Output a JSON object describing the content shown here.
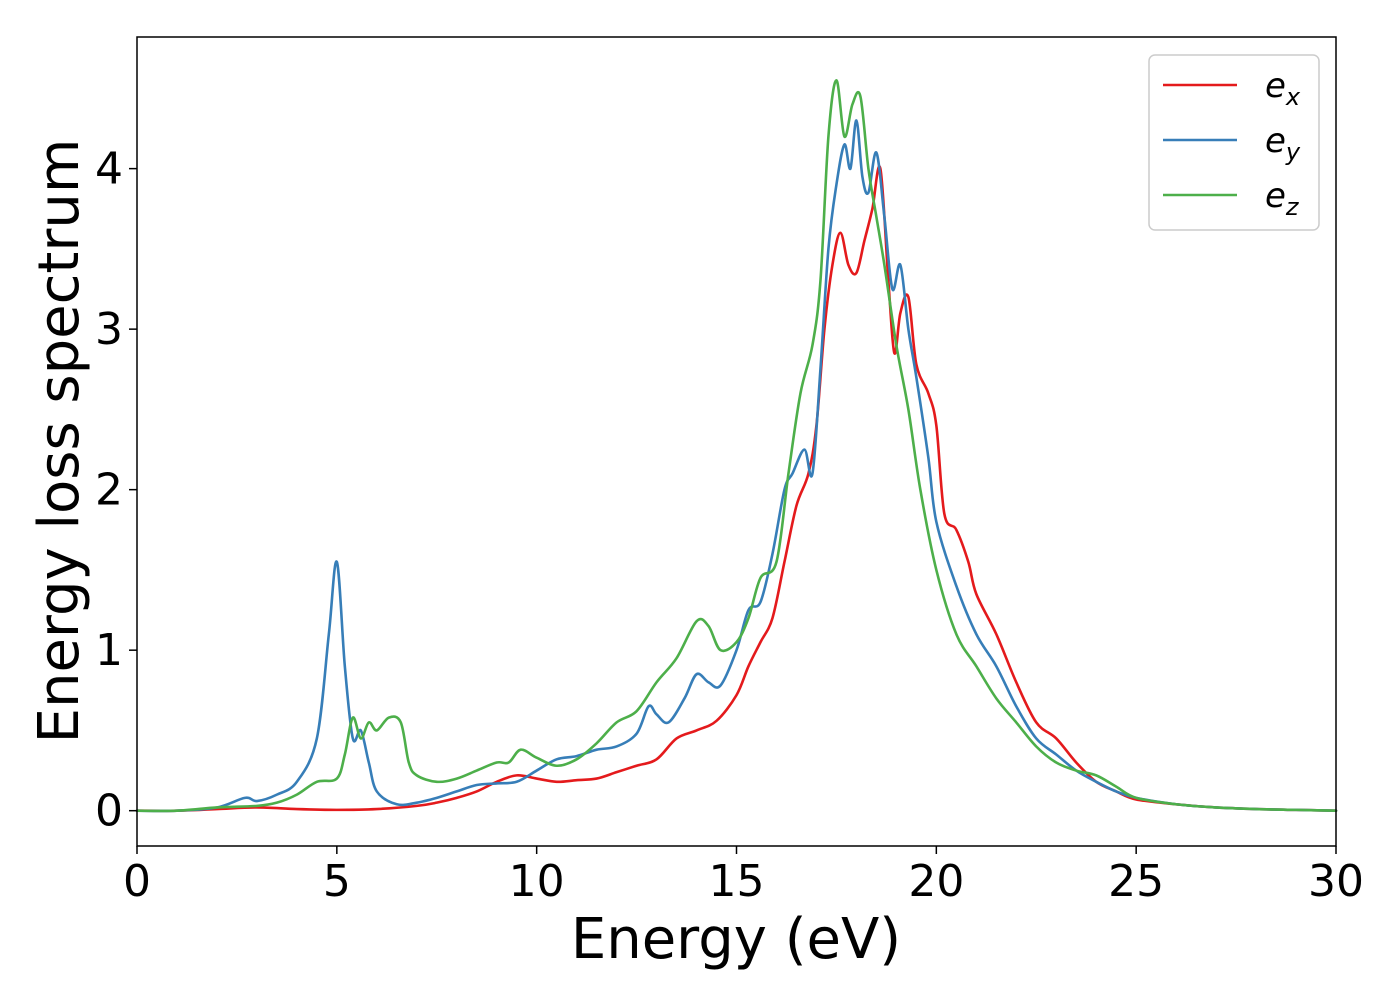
{
  "chart_data": {
    "type": "line",
    "xlabel": "Energy (eV)",
    "ylabel": "Energy loss spectrum",
    "xlim": [
      0,
      30
    ],
    "ylim": [
      -0.22,
      4.82
    ],
    "xticks": [
      0,
      5,
      10,
      15,
      20,
      25,
      30
    ],
    "yticks": [
      0,
      1,
      2,
      3,
      4
    ],
    "grid": false,
    "legend_position": "top-right",
    "series": [
      {
        "name": "e_x",
        "label_main": "e",
        "label_sub": "x",
        "color": "#e41a1c",
        "x": [
          0,
          1,
          2,
          3,
          4,
          5,
          6,
          7,
          7.5,
          8,
          8.5,
          9,
          9.5,
          10,
          10.5,
          11,
          11.5,
          12,
          12.5,
          13,
          13.5,
          14,
          14.5,
          15,
          15.3,
          15.6,
          15.9,
          16.2,
          16.5,
          16.8,
          17,
          17.2,
          17.4,
          17.6,
          17.8,
          18,
          18.2,
          18.4,
          18.6,
          18.8,
          18.95,
          19.1,
          19.3,
          19.5,
          19.8,
          20,
          20.2,
          20.5,
          20.8,
          21,
          21.5,
          22,
          22.5,
          23,
          23.5,
          24,
          24.5,
          25,
          26,
          27,
          28,
          29,
          30
        ],
        "y": [
          0,
          0,
          0.01,
          0.02,
          0.01,
          0.005,
          0.01,
          0.03,
          0.05,
          0.08,
          0.12,
          0.18,
          0.22,
          0.2,
          0.18,
          0.19,
          0.2,
          0.24,
          0.28,
          0.32,
          0.45,
          0.5,
          0.56,
          0.72,
          0.9,
          1.05,
          1.2,
          1.55,
          1.9,
          2.1,
          2.4,
          3.0,
          3.4,
          3.6,
          3.4,
          3.35,
          3.55,
          3.75,
          4.0,
          3.3,
          2.85,
          3.1,
          3.2,
          2.78,
          2.6,
          2.4,
          1.85,
          1.75,
          1.55,
          1.35,
          1.1,
          0.8,
          0.55,
          0.45,
          0.3,
          0.18,
          0.12,
          0.07,
          0.04,
          0.02,
          0.01,
          0.005,
          0
        ]
      },
      {
        "name": "e_y",
        "label_main": "e",
        "label_sub": "y",
        "color": "#377eb8",
        "x": [
          0,
          1,
          2,
          2.7,
          3,
          3.5,
          4,
          4.5,
          4.8,
          5,
          5.2,
          5.4,
          5.6,
          5.8,
          6,
          6.5,
          7,
          7.5,
          8,
          8.5,
          9,
          9.5,
          10,
          10.5,
          11,
          11.5,
          12,
          12.5,
          12.8,
          13,
          13.3,
          13.7,
          14,
          14.3,
          14.6,
          15,
          15.3,
          15.6,
          15.9,
          16.2,
          16.4,
          16.7,
          16.9,
          17.1,
          17.3,
          17.5,
          17.7,
          17.85,
          18,
          18.15,
          18.3,
          18.5,
          18.7,
          18.9,
          19.1,
          19.3,
          19.5,
          19.8,
          20,
          20.5,
          21,
          21.5,
          22,
          22.5,
          23,
          23.5,
          24,
          24.5,
          25,
          26,
          27,
          28,
          29,
          30
        ],
        "y": [
          0,
          0,
          0.02,
          0.08,
          0.06,
          0.1,
          0.18,
          0.45,
          1.1,
          1.55,
          0.9,
          0.45,
          0.5,
          0.3,
          0.12,
          0.04,
          0.05,
          0.08,
          0.12,
          0.16,
          0.17,
          0.18,
          0.25,
          0.32,
          0.34,
          0.38,
          0.4,
          0.48,
          0.65,
          0.6,
          0.55,
          0.7,
          0.85,
          0.8,
          0.78,
          1.0,
          1.25,
          1.3,
          1.6,
          2.0,
          2.1,
          2.25,
          2.1,
          2.75,
          3.5,
          3.9,
          4.15,
          4.0,
          4.3,
          3.95,
          3.85,
          4.1,
          3.7,
          3.25,
          3.4,
          3.0,
          2.7,
          2.2,
          1.8,
          1.4,
          1.1,
          0.9,
          0.65,
          0.45,
          0.35,
          0.25,
          0.18,
          0.12,
          0.08,
          0.04,
          0.02,
          0.01,
          0.005,
          0
        ]
      },
      {
        "name": "e_z",
        "label_main": "e",
        "label_sub": "z",
        "color": "#4daf4a",
        "x": [
          0,
          1,
          2,
          3,
          3.5,
          4,
          4.5,
          5,
          5.2,
          5.4,
          5.6,
          5.8,
          6,
          6.3,
          6.6,
          6.8,
          7,
          7.5,
          8,
          8.5,
          9,
          9.3,
          9.6,
          10,
          10.5,
          11,
          11.5,
          12,
          12.5,
          13,
          13.5,
          14,
          14.3,
          14.6,
          15,
          15.3,
          15.6,
          16,
          16.3,
          16.6,
          16.9,
          17.1,
          17.3,
          17.5,
          17.7,
          17.9,
          18.1,
          18.3,
          18.5,
          18.7,
          19,
          19.3,
          19.6,
          20,
          20.5,
          21,
          21.5,
          22,
          22.5,
          23,
          23.5,
          24,
          24.5,
          25,
          26,
          27,
          28,
          29,
          30
        ],
        "y": [
          0,
          0,
          0.02,
          0.03,
          0.05,
          0.1,
          0.18,
          0.2,
          0.35,
          0.58,
          0.45,
          0.55,
          0.5,
          0.58,
          0.55,
          0.3,
          0.22,
          0.18,
          0.2,
          0.25,
          0.3,
          0.3,
          0.38,
          0.33,
          0.28,
          0.32,
          0.42,
          0.55,
          0.62,
          0.8,
          0.95,
          1.18,
          1.15,
          1.0,
          1.05,
          1.2,
          1.45,
          1.55,
          2.1,
          2.6,
          2.9,
          3.3,
          4.2,
          4.55,
          4.2,
          4.4,
          4.45,
          4.0,
          3.7,
          3.4,
          2.9,
          2.5,
          2.0,
          1.5,
          1.1,
          0.9,
          0.7,
          0.55,
          0.4,
          0.3,
          0.25,
          0.22,
          0.15,
          0.08,
          0.04,
          0.02,
          0.01,
          0.005,
          0
        ]
      }
    ]
  }
}
